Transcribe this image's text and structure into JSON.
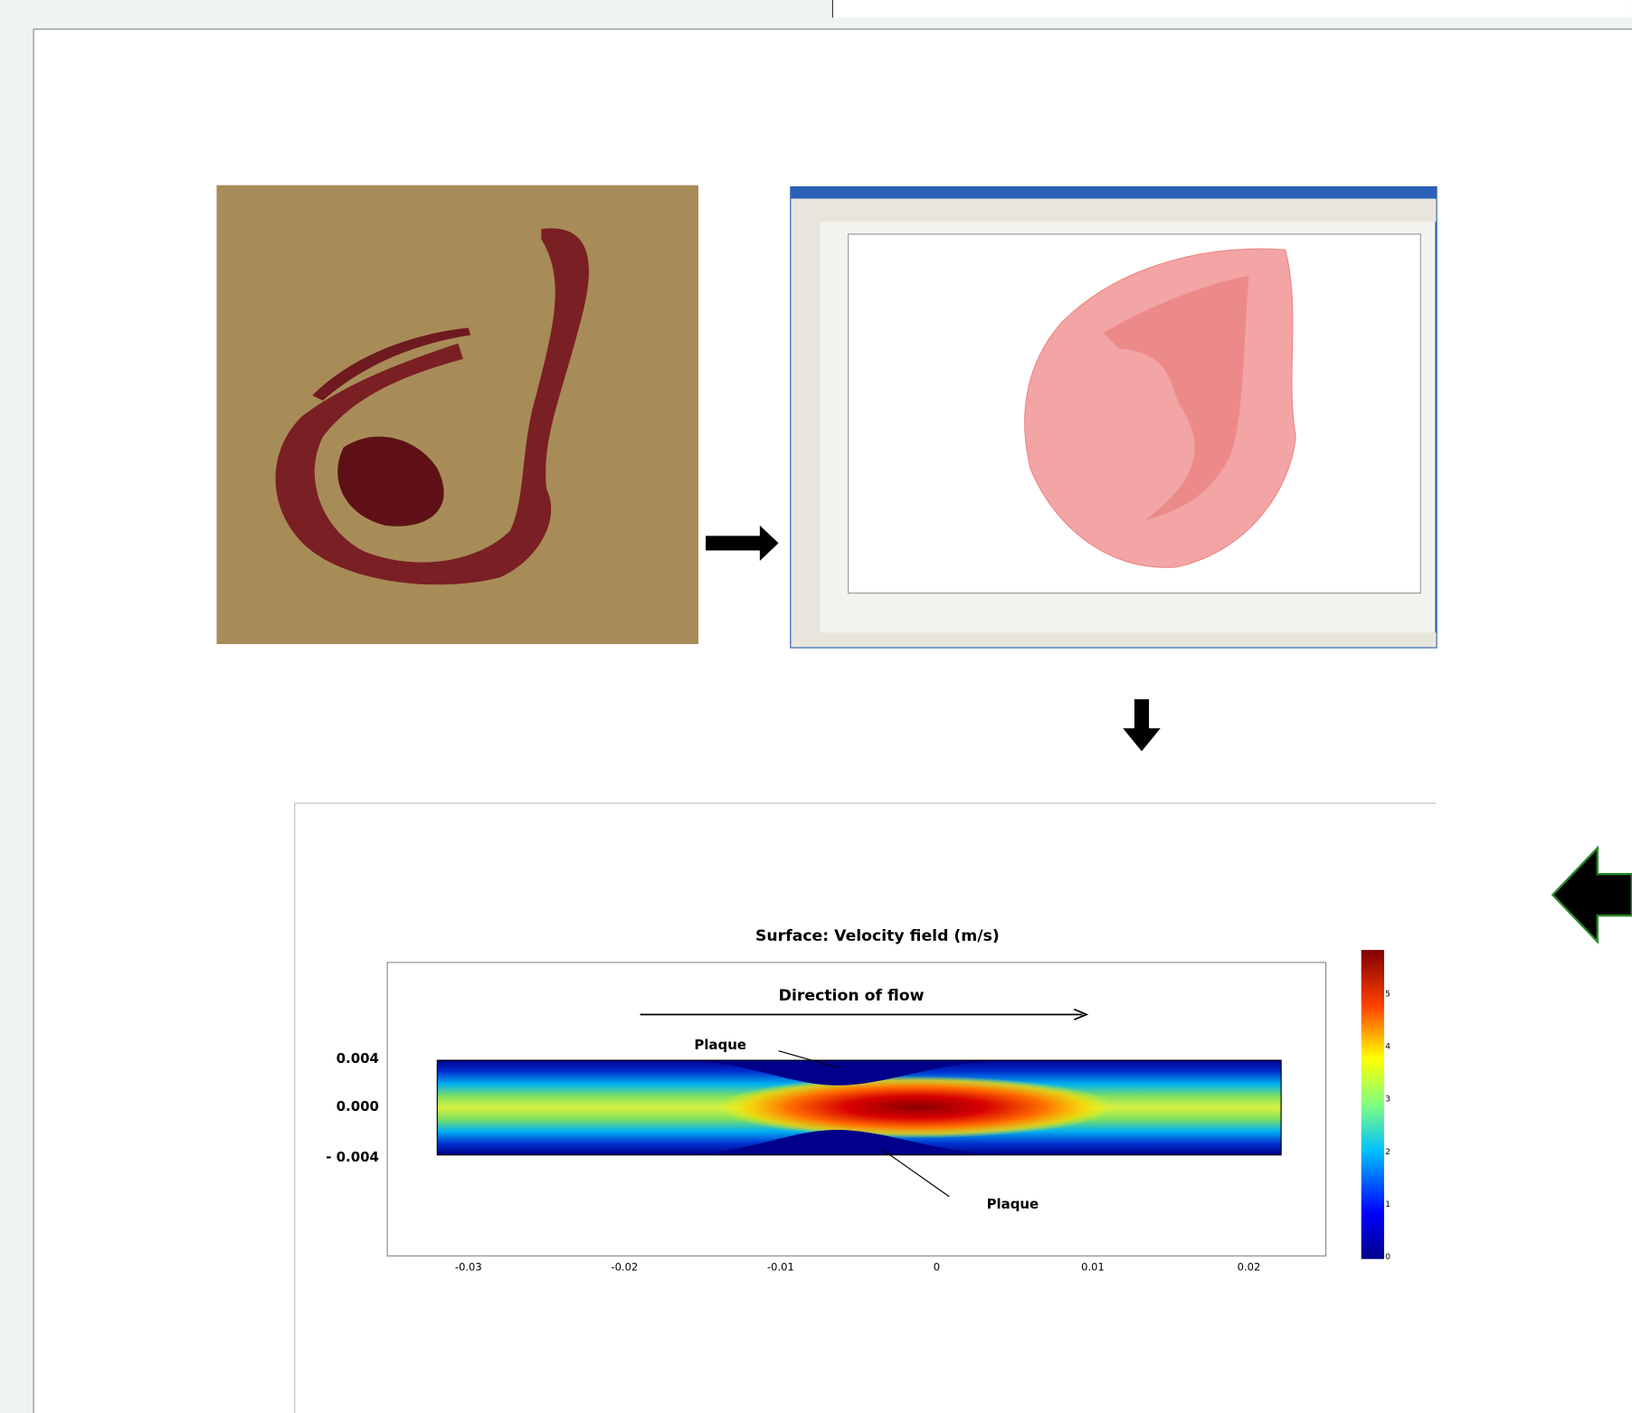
{
  "figure": {
    "plot": {
      "title": "Surface: Velocity field (m/s)",
      "annotation": "Direction of flow",
      "labels": [
        "Plaque",
        "Plaque"
      ],
      "y_ticks": [
        "0.004",
        "0.000",
        "- 0.004"
      ],
      "x_ticks": [
        "-0.03",
        "-0.02",
        "-0.01",
        "0",
        "0.01",
        "0.02"
      ],
      "colorbar_ticks": [
        "0",
        "1",
        "2",
        "3",
        "4",
        "5"
      ]
    }
  }
}
